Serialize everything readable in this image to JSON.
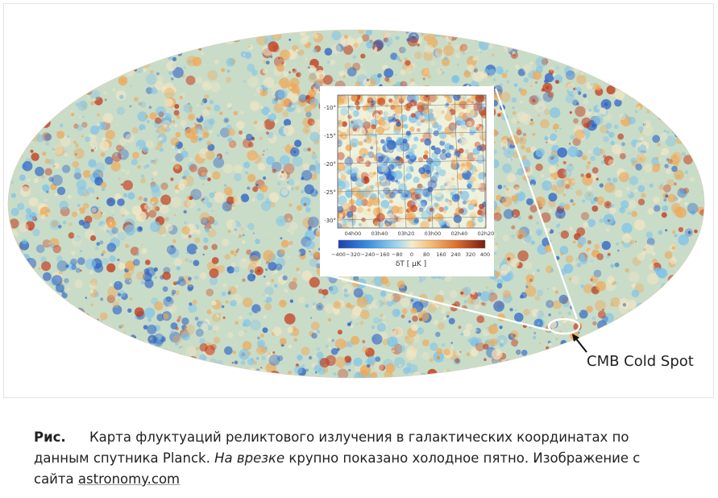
{
  "figure": {
    "callout_label": "CMB Cold Spot",
    "inset": {
      "y_ticks": [
        "-10°",
        "-15°",
        "-20°",
        "-25°",
        "-30°"
      ],
      "x_ticks": [
        "04h00",
        "03h40",
        "03h20",
        "03h00",
        "02h40",
        "02h20"
      ],
      "colorbar_ticks": [
        "−400",
        "−320",
        "−240",
        "−160",
        "−80",
        "0",
        "80",
        "160",
        "240",
        "320",
        "400"
      ],
      "colorbar_label": "δT [ μK ]"
    },
    "colors": {
      "cold": "#2b63c6",
      "cool": "#7fc3e8",
      "neutral": "#f2e6c4",
      "warm": "#f0a856",
      "hot": "#c4391a"
    }
  },
  "caption": {
    "label": "Рис.",
    "text_1": "Карта флуктуаций реликтового излучения в галактических координатах по данным спутника Planck.",
    "italic": "На врезке",
    "text_2": "крупно показано холодное пятно. Изображение с сайта",
    "link": "astronomy.com"
  }
}
